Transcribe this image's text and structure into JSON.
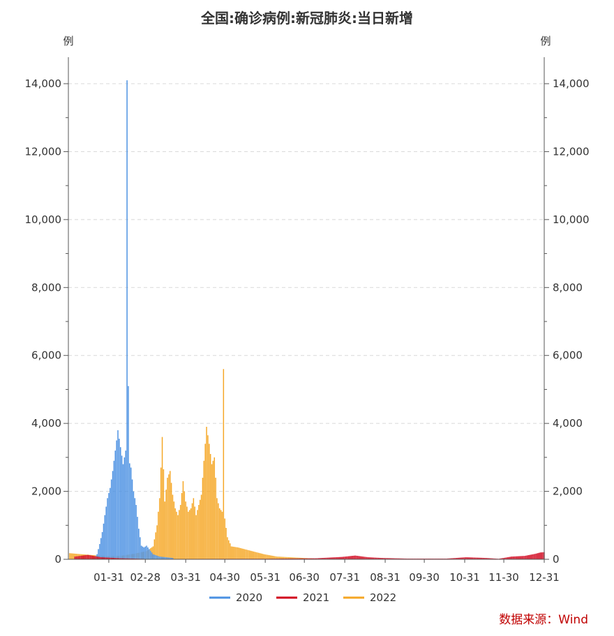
{
  "chart_data": {
    "type": "bar",
    "title": "全国:确诊病例:新冠肺炎:当日新增",
    "ylabel_left": "例",
    "ylabel_right": "例",
    "ylim": [
      0,
      15000
    ],
    "yticks": [
      "0",
      "2,000",
      "4,000",
      "6,000",
      "8,000",
      "10,000",
      "12,000",
      "14,000"
    ],
    "ytick_values": [
      0,
      2000,
      4000,
      6000,
      8000,
      10000,
      12000,
      14000
    ],
    "xticks": [
      "01-31",
      "02-28",
      "03-31",
      "04-30",
      "05-31",
      "06-30",
      "07-31",
      "08-31",
      "09-30",
      "10-31",
      "11-30",
      "12-31"
    ],
    "xtick_days": [
      31,
      59,
      90,
      120,
      151,
      181,
      212,
      243,
      273,
      304,
      334,
      365
    ],
    "grid": true,
    "legend_position": "bottom",
    "series": [
      {
        "name": "2020",
        "color": "#4a90e2",
        "points": [
          [
            20,
            50
          ],
          [
            22,
            150
          ],
          [
            24,
            450
          ],
          [
            26,
            800
          ],
          [
            28,
            1300
          ],
          [
            30,
            1800
          ],
          [
            32,
            2100
          ],
          [
            34,
            2600
          ],
          [
            36,
            3200
          ],
          [
            38,
            3800
          ],
          [
            40,
            3300
          ],
          [
            42,
            2800
          ],
          [
            44,
            3200
          ],
          [
            45,
            14100
          ],
          [
            46,
            5100
          ],
          [
            48,
            2700
          ],
          [
            50,
            2000
          ],
          [
            52,
            1600
          ],
          [
            54,
            900
          ],
          [
            56,
            400
          ],
          [
            58,
            350
          ],
          [
            60,
            400
          ],
          [
            62,
            300
          ],
          [
            65,
            150
          ],
          [
            70,
            80
          ],
          [
            80,
            40
          ]
        ]
      },
      {
        "name": "2021",
        "color": "#d0021b",
        "points": [
          [
            5,
            80
          ],
          [
            15,
            130
          ],
          [
            25,
            60
          ],
          [
            40,
            30
          ],
          [
            60,
            10
          ],
          [
            150,
            15
          ],
          [
            190,
            30
          ],
          [
            210,
            70
          ],
          [
            220,
            110
          ],
          [
            230,
            60
          ],
          [
            240,
            40
          ],
          [
            260,
            20
          ],
          [
            290,
            20
          ],
          [
            305,
            60
          ],
          [
            320,
            40
          ],
          [
            330,
            15
          ],
          [
            340,
            80
          ],
          [
            350,
            100
          ],
          [
            358,
            160
          ],
          [
            362,
            200
          ],
          [
            365,
            210
          ]
        ]
      },
      {
        "name": "2022",
        "color": "#f5a623",
        "points": [
          [
            1,
            180
          ],
          [
            10,
            150
          ],
          [
            20,
            120
          ],
          [
            30,
            90
          ],
          [
            40,
            100
          ],
          [
            50,
            160
          ],
          [
            60,
            240
          ],
          [
            65,
            380
          ],
          [
            68,
            1000
          ],
          [
            70,
            1800
          ],
          [
            72,
            3600
          ],
          [
            74,
            1700
          ],
          [
            76,
            2400
          ],
          [
            78,
            2600
          ],
          [
            80,
            1900
          ],
          [
            82,
            1500
          ],
          [
            84,
            1300
          ],
          [
            86,
            1600
          ],
          [
            88,
            2300
          ],
          [
            90,
            1700
          ],
          [
            92,
            1400
          ],
          [
            94,
            1500
          ],
          [
            96,
            1800
          ],
          [
            98,
            1300
          ],
          [
            100,
            1600
          ],
          [
            102,
            1900
          ],
          [
            104,
            2900
          ],
          [
            106,
            3900
          ],
          [
            108,
            3400
          ],
          [
            110,
            2800
          ],
          [
            112,
            3000
          ],
          [
            114,
            1800
          ],
          [
            116,
            1500
          ],
          [
            118,
            1400
          ],
          [
            119,
            5600
          ],
          [
            120,
            1200
          ],
          [
            122,
            650
          ],
          [
            125,
            380
          ],
          [
            130,
            350
          ],
          [
            135,
            300
          ],
          [
            140,
            250
          ],
          [
            145,
            200
          ],
          [
            150,
            150
          ],
          [
            160,
            80
          ],
          [
            170,
            60
          ],
          [
            180,
            40
          ],
          [
            190,
            20
          ]
        ]
      }
    ]
  },
  "source": "数据来源：Wind"
}
